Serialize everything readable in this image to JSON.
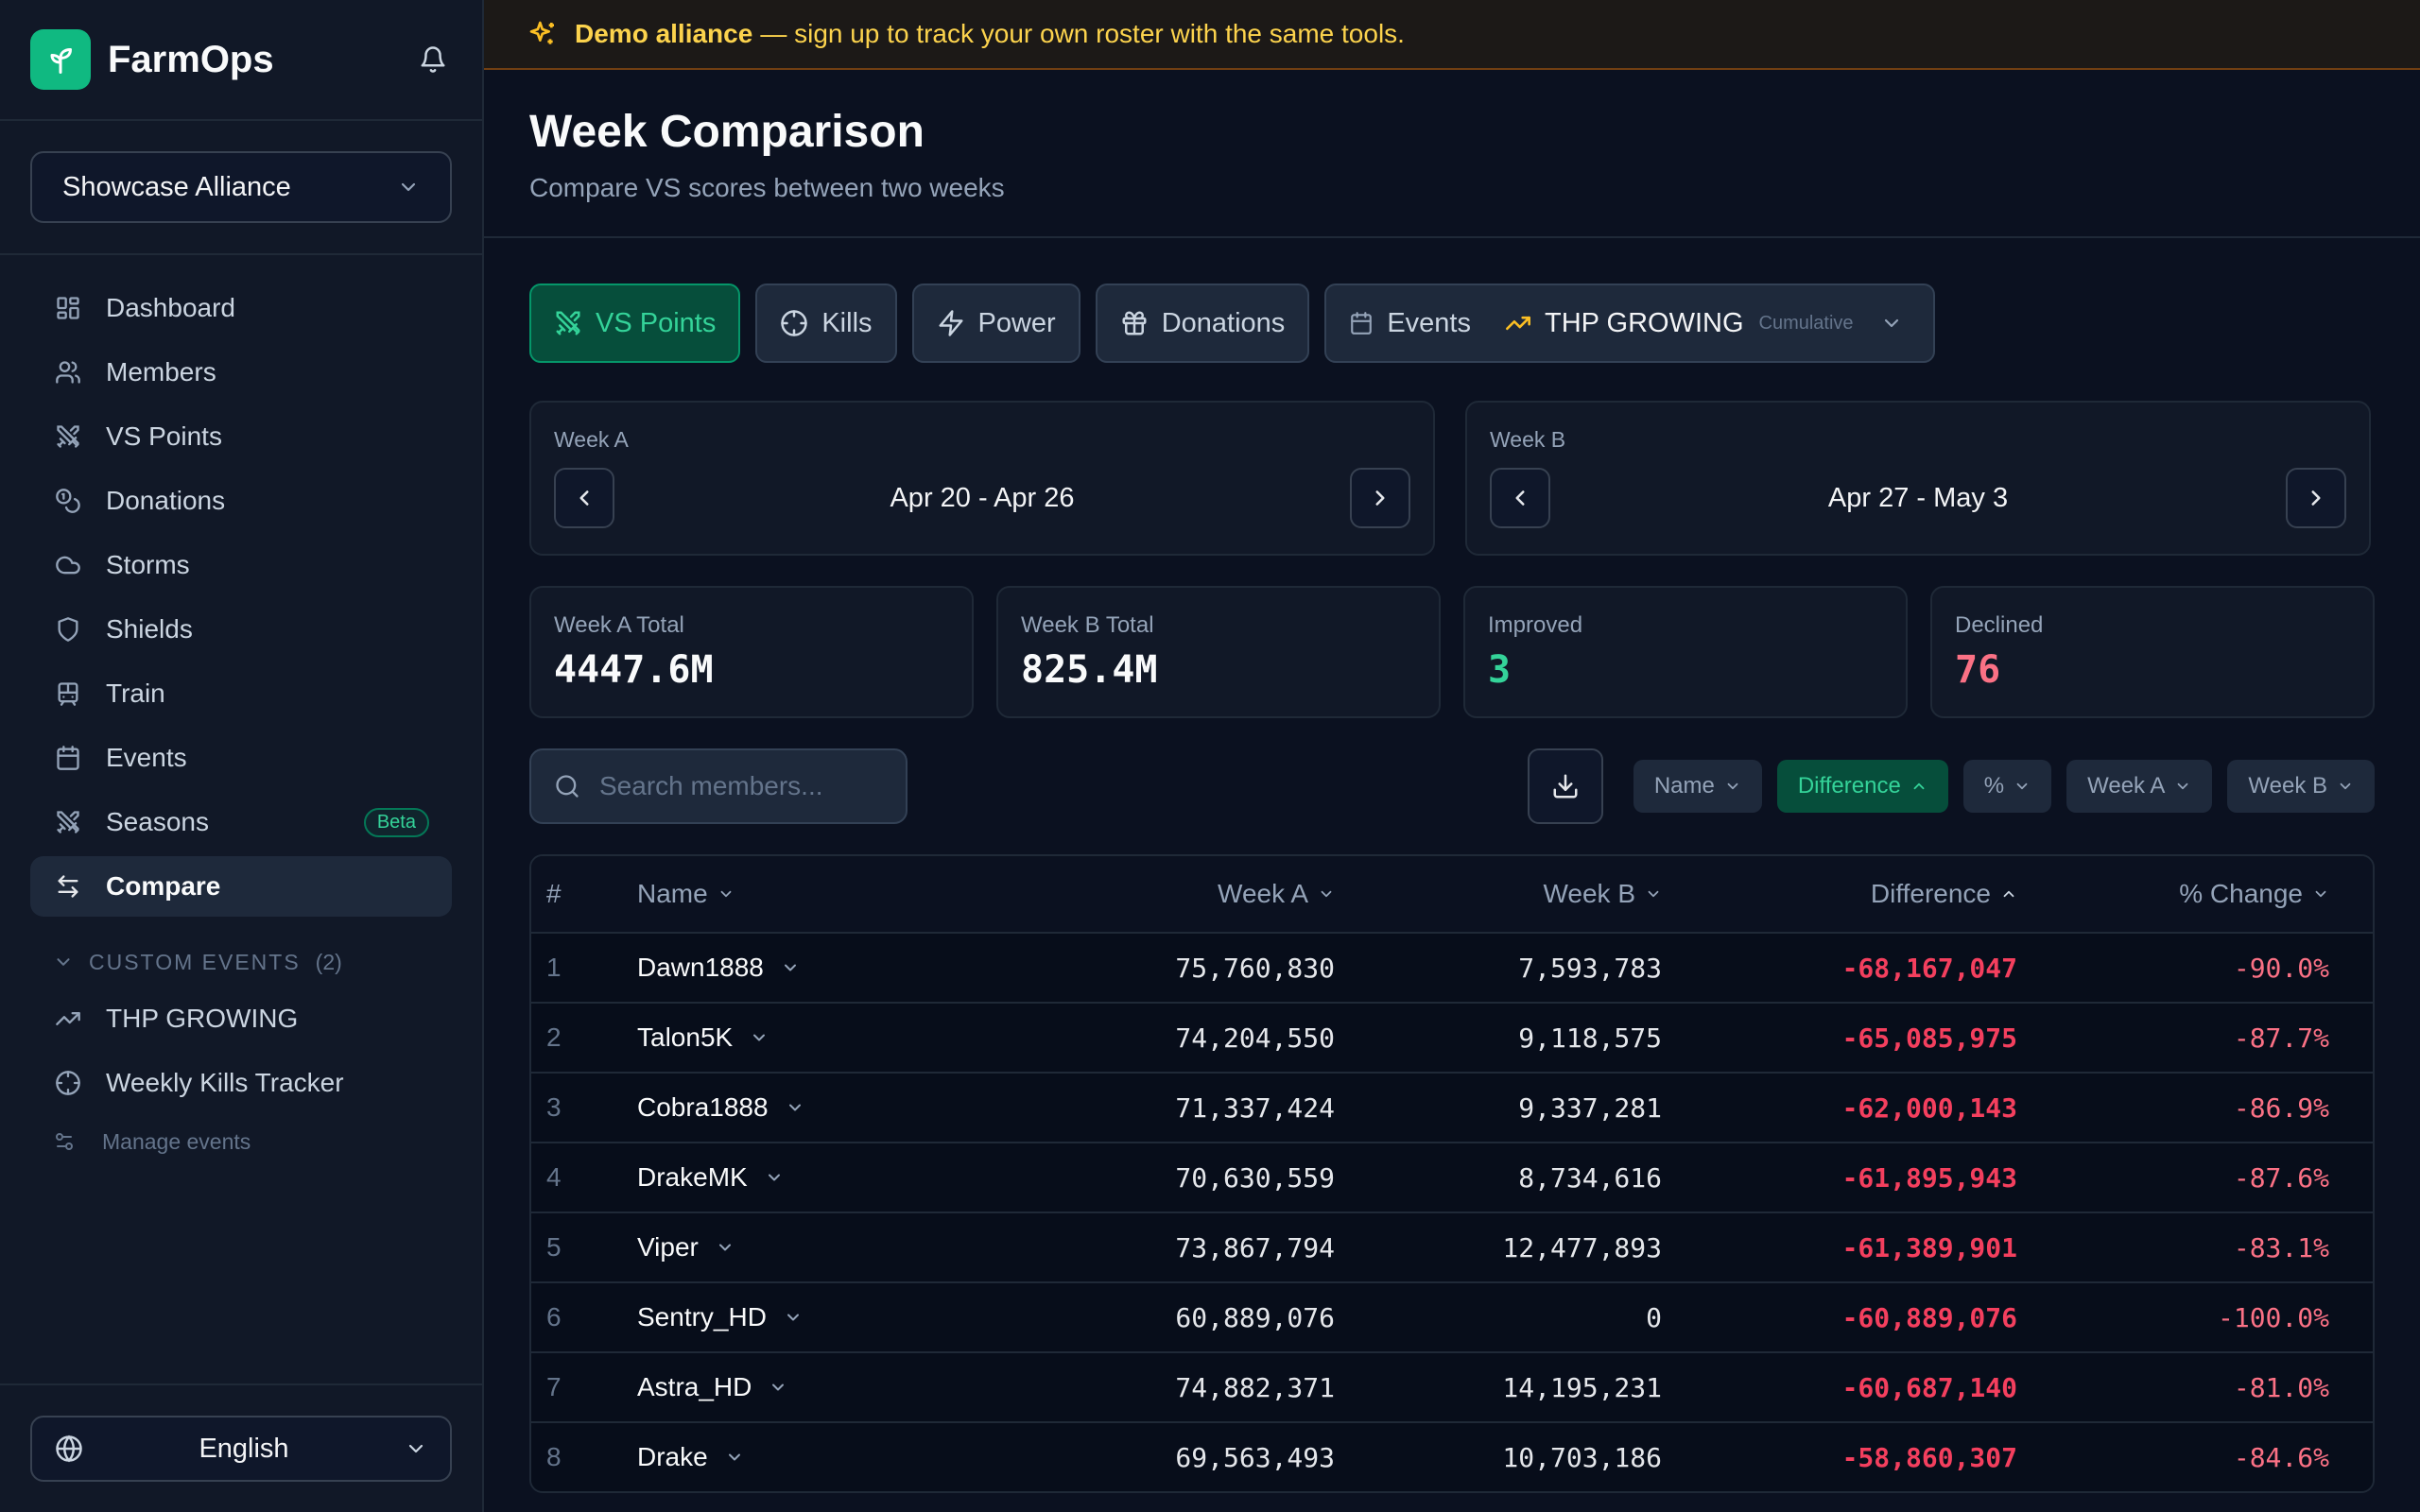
{
  "app": {
    "name": "FarmOps"
  },
  "sidebar": {
    "alliance": "Showcase Alliance",
    "nav": [
      {
        "label": "Dashboard",
        "icon": "dashboard-icon"
      },
      {
        "label": "Members",
        "icon": "members-icon"
      },
      {
        "label": "VS Points",
        "icon": "swords-icon"
      },
      {
        "label": "Donations",
        "icon": "coins-icon"
      },
      {
        "label": "Storms",
        "icon": "cloud-icon"
      },
      {
        "label": "Shields",
        "icon": "shield-icon"
      },
      {
        "label": "Train",
        "icon": "train-icon"
      },
      {
        "label": "Events",
        "icon": "calendar-icon"
      },
      {
        "label": "Seasons",
        "icon": "swords-icon",
        "badge": "Beta"
      },
      {
        "label": "Compare",
        "icon": "compare-icon",
        "active": true
      }
    ],
    "custom_events": {
      "heading": "CUSTOM EVENTS",
      "count": "(2)",
      "items": [
        {
          "label": "THP GROWING",
          "icon": "trending-up-icon"
        },
        {
          "label": "Weekly Kills Tracker",
          "icon": "crosshair-icon"
        }
      ],
      "manage_label": "Manage events"
    },
    "language": "English"
  },
  "banner": {
    "bold": "Demo alliance",
    "text": "— sign up to track your own roster with the same tools."
  },
  "header": {
    "title": "Week Comparison",
    "subtitle": "Compare VS scores between two weeks"
  },
  "metrics": {
    "vs_points": "VS Points",
    "kills": "Kills",
    "power": "Power",
    "donations": "Donations",
    "events": "Events",
    "event_selected": "THP GROWING",
    "event_mode": "Cumulative"
  },
  "weeks": {
    "a": {
      "label": "Week A",
      "range": "Apr 20 - Apr 26"
    },
    "b": {
      "label": "Week B",
      "range": "Apr 27 - May 3"
    }
  },
  "stats": {
    "week_a_total": {
      "label": "Week A Total",
      "value": "4447.6M"
    },
    "week_b_total": {
      "label": "Week B Total",
      "value": "825.4M"
    },
    "improved": {
      "label": "Improved",
      "value": "3"
    },
    "declined": {
      "label": "Declined",
      "value": "76"
    }
  },
  "search": {
    "placeholder": "Search members..."
  },
  "sort_chips": {
    "name": "Name",
    "difference": "Difference",
    "pct": "%",
    "week_a": "Week A",
    "week_b": "Week B"
  },
  "table": {
    "headers": {
      "rank": "#",
      "name": "Name",
      "week_a": "Week A",
      "week_b": "Week B",
      "difference": "Difference",
      "pct": "% Change"
    },
    "rows": [
      {
        "rank": "1",
        "name": "Dawn1888",
        "week_a": "75,760,830",
        "week_b": "7,593,783",
        "difference": "-68,167,047",
        "pct": "-90.0%"
      },
      {
        "rank": "2",
        "name": "Talon5K",
        "week_a": "74,204,550",
        "week_b": "9,118,575",
        "difference": "-65,085,975",
        "pct": "-87.7%"
      },
      {
        "rank": "3",
        "name": "Cobra1888",
        "week_a": "71,337,424",
        "week_b": "9,337,281",
        "difference": "-62,000,143",
        "pct": "-86.9%"
      },
      {
        "rank": "4",
        "name": "DrakeMK",
        "week_a": "70,630,559",
        "week_b": "8,734,616",
        "difference": "-61,895,943",
        "pct": "-87.6%"
      },
      {
        "rank": "5",
        "name": "Viper",
        "week_a": "73,867,794",
        "week_b": "12,477,893",
        "difference": "-61,389,901",
        "pct": "-83.1%"
      },
      {
        "rank": "6",
        "name": "Sentry_HD",
        "week_a": "60,889,076",
        "week_b": "0",
        "difference": "-60,889,076",
        "pct": "-100.0%"
      },
      {
        "rank": "7",
        "name": "Astra_HD",
        "week_a": "74,882,371",
        "week_b": "14,195,231",
        "difference": "-60,687,140",
        "pct": "-81.0%"
      },
      {
        "rank": "8",
        "name": "Drake",
        "week_a": "69,563,493",
        "week_b": "10,703,186",
        "difference": "-58,860,307",
        "pct": "-84.6%"
      }
    ]
  },
  "colors": {
    "accent": "#10b981",
    "negative": "#f43f5e",
    "banner": "#fcd34d"
  }
}
